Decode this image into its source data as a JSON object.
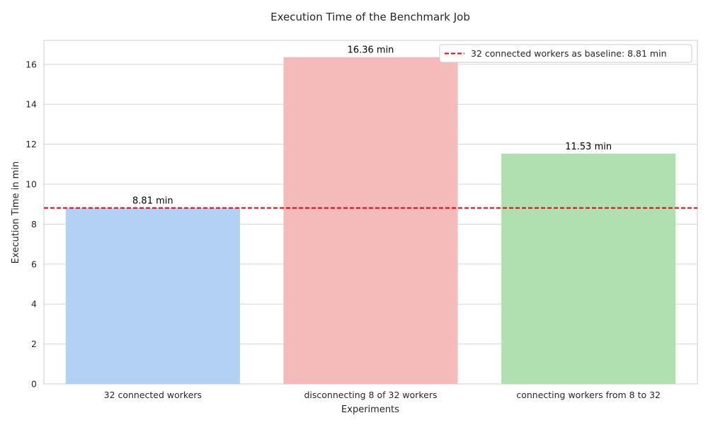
{
  "chart_data": {
    "type": "bar",
    "title": "Execution Time of the Benchmark Job",
    "xlabel": "Experiments",
    "ylabel": "Execution Time in min",
    "categories": [
      "32 connected workers",
      "disconnecting 8 of 32 workers",
      "connecting workers from 8 to 32"
    ],
    "values": [
      8.81,
      16.36,
      11.53
    ],
    "data_labels": [
      "8.81 min",
      "16.36 min",
      "11.53 min"
    ],
    "colors": [
      "#b3d1f5",
      "#f5bbbb",
      "#b0dfb0"
    ],
    "ylim": [
      0,
      17.2
    ],
    "yticks": [
      0,
      2,
      4,
      6,
      8,
      10,
      12,
      14,
      16
    ],
    "grid": true,
    "baseline": {
      "value": 8.81,
      "label": "32 connected workers as baseline: 8.81 min",
      "color": "#e8000b",
      "style": "dashed"
    },
    "legend_position": "top-right"
  }
}
